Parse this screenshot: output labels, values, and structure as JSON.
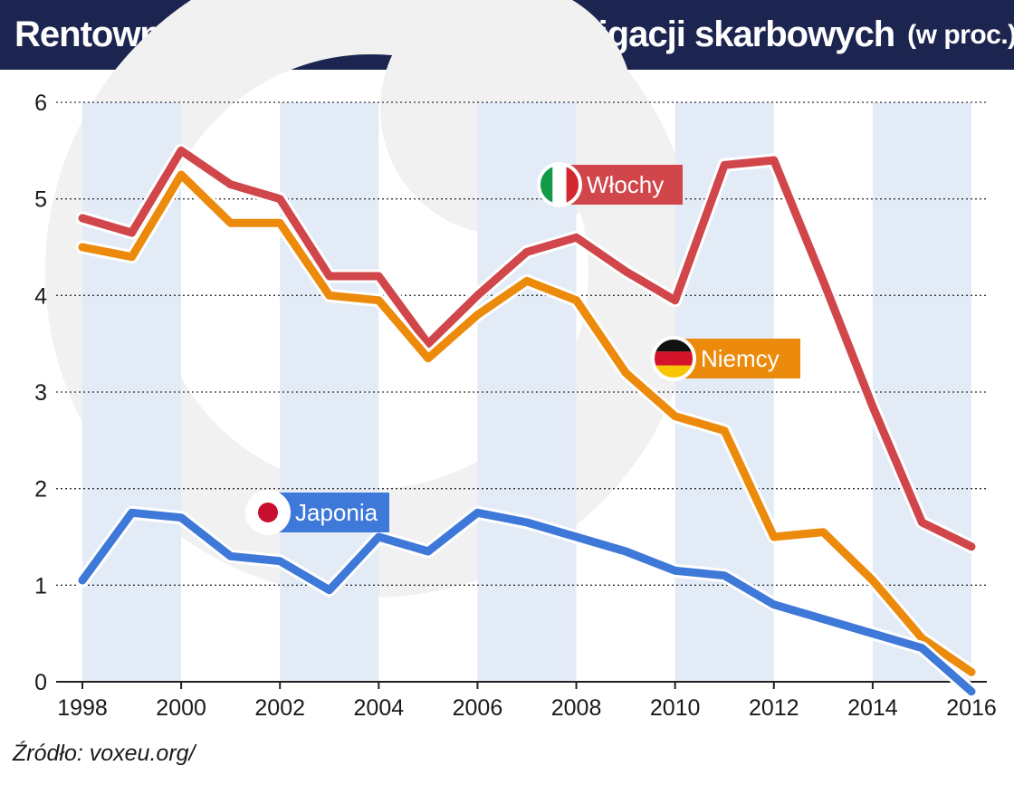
{
  "title": "Rentowność długoterminowych obligacji skarbowych",
  "subtitle": "(w proc.)",
  "source": "Źródło: voxeu.org/",
  "chart_data": {
    "type": "line",
    "x": [
      1998,
      1999,
      2000,
      2001,
      2002,
      2003,
      2004,
      2005,
      2006,
      2007,
      2008,
      2009,
      2010,
      2011,
      2012,
      2013,
      2014,
      2015,
      2016
    ],
    "x_tick_labels": [
      "1998",
      "2000",
      "2002",
      "2004",
      "2006",
      "2008",
      "2010",
      "2012",
      "2014",
      "2016"
    ],
    "y_ticks": [
      "0",
      "1",
      "2",
      "3",
      "4",
      "5",
      "6"
    ],
    "ylim": [
      0,
      6
    ],
    "grid": true,
    "series": [
      {
        "name": "Włochy",
        "color": "#d0464a",
        "flag": "italy-flag-icon",
        "values": [
          4.8,
          4.65,
          5.5,
          5.15,
          5.0,
          4.2,
          4.2,
          3.5,
          4.0,
          4.45,
          4.6,
          4.25,
          3.95,
          5.35,
          5.4,
          4.15,
          2.85,
          1.65,
          1.4
        ]
      },
      {
        "name": "Niemcy",
        "color": "#ec8a0b",
        "flag": "germany-flag-icon",
        "values": [
          4.5,
          4.4,
          5.25,
          4.75,
          4.75,
          4.0,
          3.95,
          3.35,
          3.8,
          4.15,
          3.95,
          3.2,
          2.75,
          2.6,
          1.5,
          1.55,
          1.05,
          0.45,
          0.1
        ]
      },
      {
        "name": "Japonia",
        "color": "#3e78d8",
        "flag": "japan-flag-icon",
        "values": [
          1.05,
          1.75,
          1.7,
          1.3,
          1.25,
          0.95,
          1.5,
          1.35,
          1.75,
          1.65,
          1.5,
          1.35,
          1.15,
          1.1,
          0.8,
          0.65,
          0.5,
          0.35,
          -0.1
        ]
      }
    ],
    "colors": {
      "band": "#e3ebf7",
      "grid": "#333333",
      "axis": "#222222",
      "title_bg": "#1c2450",
      "watermark": "#f1f1f1"
    }
  }
}
